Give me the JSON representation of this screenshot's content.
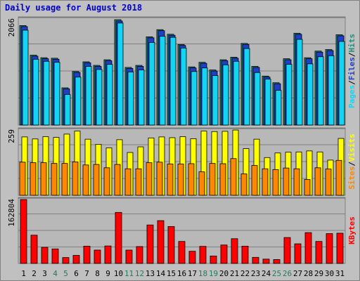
{
  "title": "Daily usage for August 2018",
  "colors": {
    "background": "#c0c0c0",
    "panel_bg": "#b8b8b8",
    "hits": "#1e8f80",
    "files": "#1f3fc8",
    "pages": "#14d4f4",
    "visits": "#ffff00",
    "sites": "#ff8800",
    "kbytes": "#ff0000",
    "weekend": "#1e7d5a",
    "weekday": "#000000"
  },
  "chart_data": [
    {
      "type": "bar",
      "panel": "requests",
      "max_label": "2066",
      "ylim": [
        0,
        2066
      ],
      "legend": [
        "Pages",
        "/",
        "Files",
        "/",
        "Hits"
      ],
      "categories": [
        "1",
        "2",
        "3",
        "4",
        "5",
        "6",
        "7",
        "8",
        "9",
        "10",
        "11",
        "12",
        "13",
        "14",
        "15",
        "16",
        "17",
        "18",
        "19",
        "20",
        "21",
        "22",
        "23",
        "24",
        "25",
        "26",
        "27",
        "28",
        "29",
        "30",
        "31"
      ],
      "series": [
        {
          "name": "Hits",
          "values": [
            1950,
            1370,
            1320,
            1310,
            730,
            1050,
            1240,
            1170,
            1280,
            2066,
            1130,
            1170,
            1730,
            1870,
            1780,
            1580,
            1140,
            1230,
            1080,
            1280,
            1330,
            1600,
            1150,
            960,
            830,
            1300,
            1800,
            1320,
            1450,
            1480,
            1770
          ]
        },
        {
          "name": "Files",
          "values": [
            1930,
            1350,
            1300,
            1290,
            710,
            1030,
            1220,
            1150,
            1260,
            2040,
            1110,
            1150,
            1710,
            1850,
            1760,
            1560,
            1120,
            1210,
            1060,
            1260,
            1310,
            1580,
            1130,
            940,
            810,
            1280,
            1780,
            1300,
            1430,
            1460,
            1750
          ]
        },
        {
          "name": "Pages",
          "values": [
            1860,
            1290,
            1250,
            1230,
            600,
            940,
            1150,
            1090,
            1190,
            2000,
            1040,
            1080,
            1620,
            1740,
            1720,
            1510,
            1050,
            1120,
            970,
            1180,
            1250,
            1500,
            1030,
            900,
            680,
            1190,
            1680,
            1200,
            1340,
            1360,
            1640
          ]
        }
      ]
    },
    {
      "type": "bar",
      "panel": "visitors",
      "max_label": "259",
      "ylim": [
        0,
        259
      ],
      "legend": [
        "Sites",
        "/",
        "Visits"
      ],
      "categories": [
        "1",
        "2",
        "3",
        "4",
        "5",
        "6",
        "7",
        "8",
        "9",
        "10",
        "11",
        "12",
        "13",
        "14",
        "15",
        "16",
        "17",
        "18",
        "19",
        "20",
        "21",
        "22",
        "23",
        "24",
        "25",
        "26",
        "27",
        "28",
        "29",
        "30",
        "31"
      ],
      "series": [
        {
          "name": "Visits",
          "values": [
            229,
            221,
            230,
            227,
            240,
            252,
            220,
            200,
            186,
            218,
            168,
            190,
            225,
            229,
            226,
            230,
            222,
            252,
            250,
            251,
            256,
            183,
            220,
            148,
            166,
            169,
            170,
            174,
            170,
            138,
            223
          ]
        },
        {
          "name": "Sites",
          "values": [
            130,
            128,
            128,
            125,
            125,
            131,
            119,
            121,
            108,
            121,
            104,
            104,
            128,
            130,
            123,
            123,
            124,
            92,
            125,
            124,
            144,
            84,
            117,
            104,
            101,
            107,
            104,
            62,
            108,
            103,
            137
          ]
        }
      ]
    },
    {
      "type": "bar",
      "panel": "kbytes",
      "max_label": "162804",
      "ylim": [
        0,
        162804
      ],
      "legend": [
        "KBytes"
      ],
      "categories": [
        "1",
        "2",
        "3",
        "4",
        "5",
        "6",
        "7",
        "8",
        "9",
        "10",
        "11",
        "12",
        "13",
        "14",
        "15",
        "16",
        "17",
        "18",
        "19",
        "20",
        "21",
        "22",
        "23",
        "24",
        "25",
        "26",
        "27",
        "28",
        "29",
        "30",
        "31"
      ],
      "series": [
        {
          "name": "KBytes",
          "values": [
            162804,
            72000,
            41000,
            37000,
            15000,
            20500,
            44000,
            34000,
            44500,
            130000,
            34000,
            43000,
            98000,
            109000,
            94000,
            56000,
            31000,
            43500,
            19000,
            47000,
            63000,
            44000,
            15500,
            11000,
            10000,
            66000,
            50000,
            78500,
            56000,
            76000,
            77000
          ]
        }
      ]
    }
  ],
  "x_axis": {
    "labels": [
      "1",
      "2",
      "3",
      "4",
      "5",
      "6",
      "7",
      "8",
      "9",
      "10",
      "11",
      "12",
      "13",
      "14",
      "15",
      "16",
      "17",
      "18",
      "19",
      "20",
      "21",
      "22",
      "23",
      "24",
      "25",
      "26",
      "27",
      "28",
      "29",
      "30",
      "31"
    ],
    "weekend_days": [
      "4",
      "5",
      "11",
      "12",
      "18",
      "19",
      "25",
      "26"
    ]
  }
}
